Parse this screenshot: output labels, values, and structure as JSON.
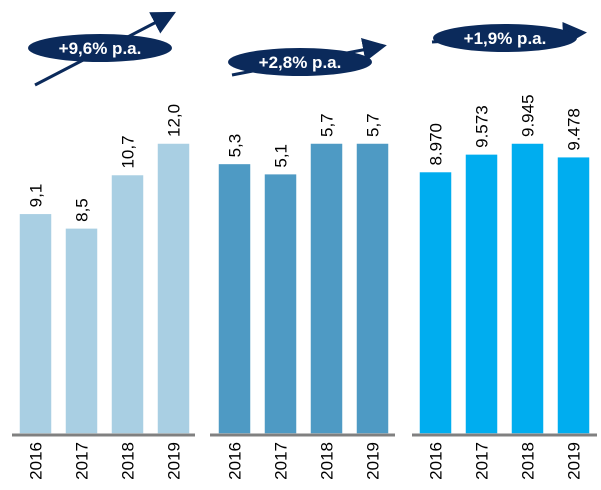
{
  "chart_data": [
    {
      "type": "bar",
      "annotation": "+9,6% p.a.",
      "categories": [
        "2016",
        "2017",
        "2018",
        "2019"
      ],
      "values": [
        9.1,
        8.5,
        10.7,
        12.0
      ],
      "value_labels": [
        "9,1",
        "8,5",
        "10,7",
        "12,0"
      ],
      "color": "#a9cfe3",
      "ylim": [
        0,
        12
      ]
    },
    {
      "type": "bar",
      "annotation": "+2,8% p.a.",
      "categories": [
        "2016",
        "2017",
        "2018",
        "2019"
      ],
      "values": [
        5.3,
        5.1,
        5.7,
        5.7
      ],
      "value_labels": [
        "5,3",
        "5,1",
        "5,7",
        "5,7"
      ],
      "color": "#4e9ac4",
      "ylim": [
        0,
        5.7
      ]
    },
    {
      "type": "bar",
      "annotation": "+1,9% p.a.",
      "categories": [
        "2016",
        "2017",
        "2018",
        "2019"
      ],
      "values": [
        8970,
        9573,
        9945,
        9478
      ],
      "value_labels": [
        "8.970",
        "9.573",
        "9.945",
        "9.478"
      ],
      "color": "#00adef",
      "ylim": [
        0,
        9945
      ]
    }
  ]
}
